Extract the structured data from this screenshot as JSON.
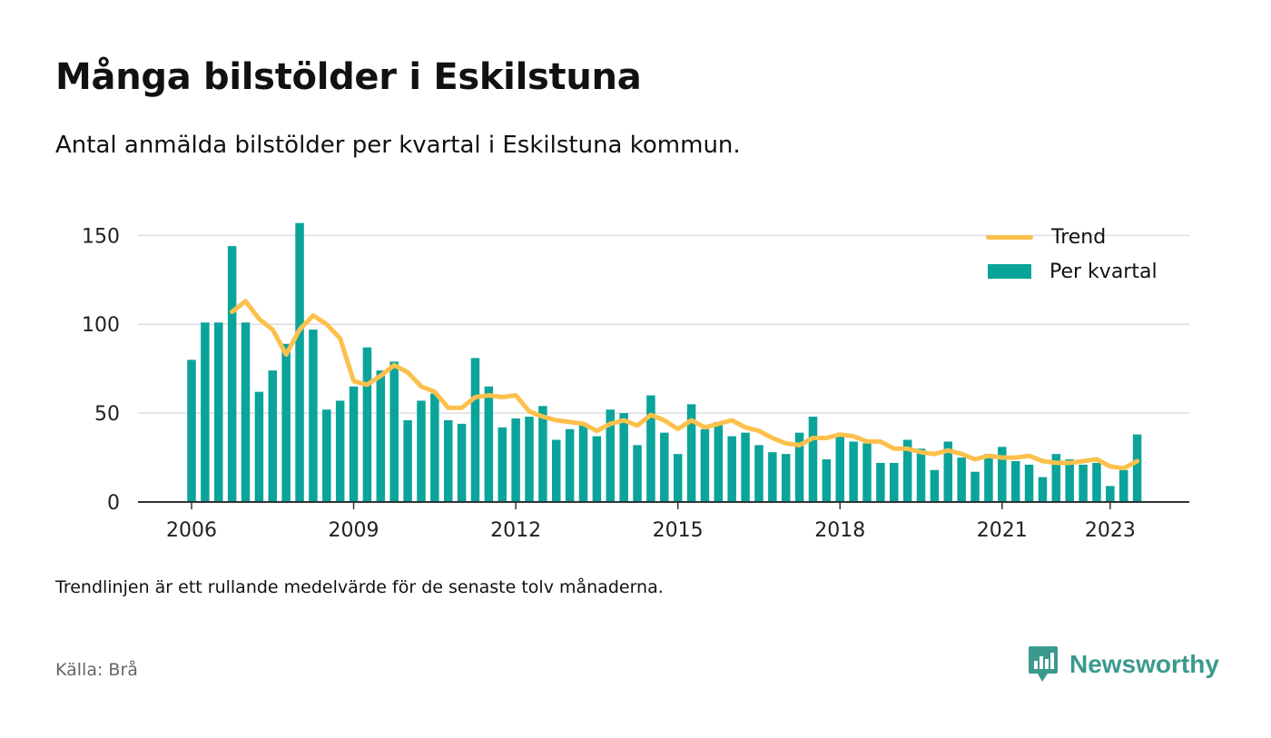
{
  "title": "Många bilstölder i Eskilstuna",
  "subtitle": "Antal anmälda bilstölder per kvartal i Eskilstuna kommun.",
  "note": "Trendlinjen är ett rullande medelvärde för de senaste tolv månaderna.",
  "source": "Källa: Brå",
  "brand": {
    "name": "Newsworthy",
    "icon": "newsworthy-logo-icon"
  },
  "colors": {
    "bar": "#0aa49a",
    "trend": "#fcc04c",
    "grid": "#dddddd",
    "axis": "#333333",
    "brand": "#3a9a8d"
  },
  "chart_data": {
    "type": "bar",
    "x_start": 2006,
    "x_step": 0.25,
    "ylim": [
      0,
      165
    ],
    "y_ticks": [
      "0",
      "50",
      "100",
      "150"
    ],
    "x_ticks": [
      "2006",
      "2009",
      "2012",
      "2015",
      "2018",
      "2021",
      "2023"
    ],
    "grid": true,
    "legend_position": "top-right",
    "series": [
      {
        "name": "Per kvartal",
        "type": "bar",
        "values": [
          80,
          101,
          101,
          144,
          101,
          62,
          74,
          89,
          157,
          97,
          52,
          57,
          65,
          87,
          74,
          79,
          46,
          57,
          61,
          46,
          44,
          81,
          65,
          42,
          47,
          48,
          54,
          35,
          41,
          44,
          37,
          52,
          50,
          32,
          60,
          39,
          27,
          55,
          41,
          45,
          37,
          39,
          32,
          28,
          27,
          39,
          48,
          24,
          37,
          34,
          33,
          22,
          22,
          35,
          30,
          18,
          34,
          25,
          17,
          27,
          31,
          23,
          21,
          14,
          27,
          24,
          21,
          22,
          9,
          18,
          38
        ]
      },
      {
        "name": "Trend",
        "type": "line",
        "start_index": 3,
        "values": [
          107,
          113,
          103,
          97,
          83,
          97,
          105,
          100,
          92,
          68,
          66,
          71,
          77,
          73,
          65,
          62,
          53,
          53,
          59,
          60,
          59,
          60,
          51,
          48,
          46,
          45,
          44,
          40,
          44,
          46,
          43,
          49,
          46,
          41,
          46,
          42,
          44,
          46,
          42,
          40,
          36,
          33,
          32,
          36,
          36,
          38,
          37,
          34,
          34,
          30,
          30,
          28,
          27,
          29,
          27,
          24,
          26,
          25,
          25,
          26,
          23,
          22,
          22,
          23,
          24,
          20,
          19,
          23
        ]
      }
    ]
  }
}
